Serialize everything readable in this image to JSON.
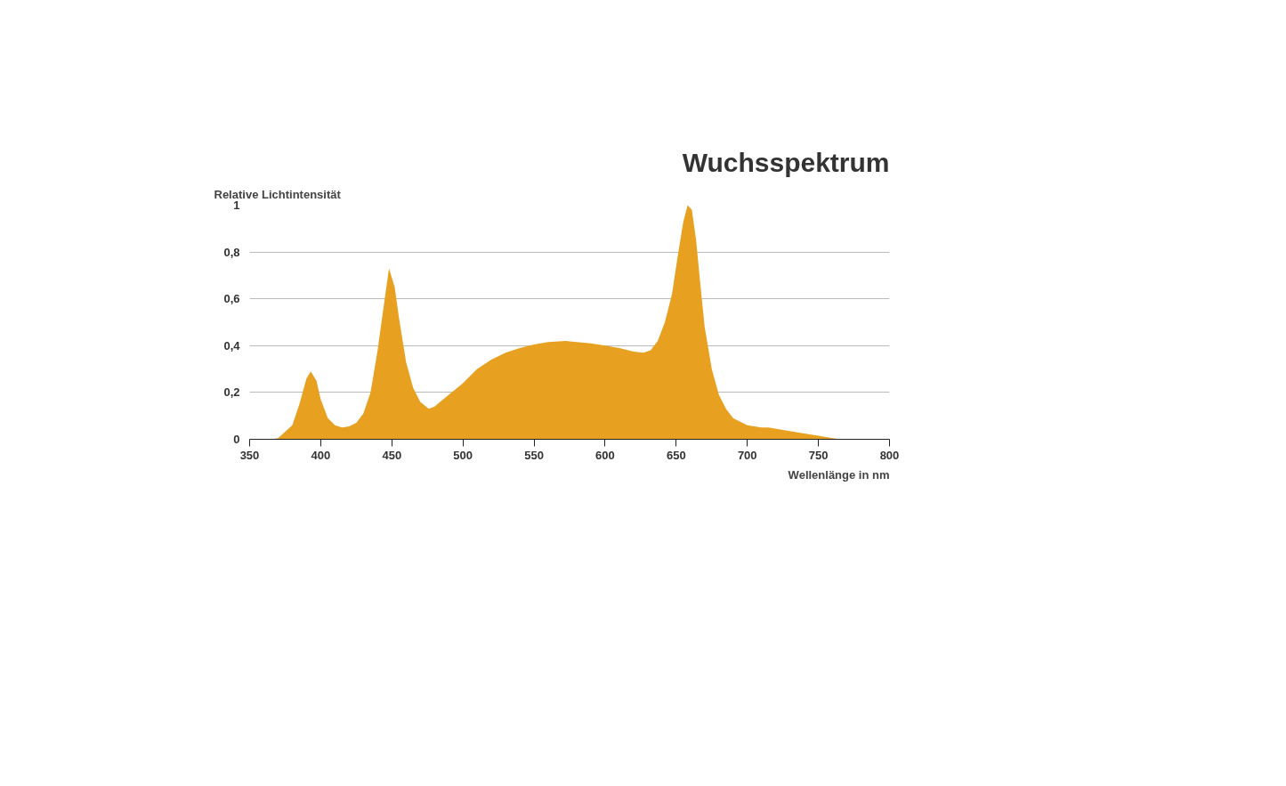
{
  "chart_data": {
    "type": "area",
    "title": "Wuchsspektrum",
    "ylabel": "Relative Lichtintensität",
    "xlabel": "Wellenlänge in nm",
    "x": [
      365,
      370,
      380,
      385,
      390,
      393,
      397,
      400,
      405,
      410,
      415,
      420,
      425,
      430,
      435,
      440,
      445,
      448,
      452,
      455,
      460,
      465,
      470,
      476,
      480,
      490,
      500,
      510,
      520,
      530,
      540,
      550,
      560,
      572,
      580,
      590,
      600,
      610,
      620,
      627,
      632,
      637,
      642,
      647,
      651,
      655,
      658,
      661,
      664,
      667,
      670,
      675,
      680,
      685,
      690,
      700,
      710,
      715,
      725,
      740,
      750,
      760,
      765
    ],
    "series": [
      {
        "color": "#e8a020",
        "values": [
          0,
          0.005,
          0.06,
          0.15,
          0.26,
          0.29,
          0.25,
          0.17,
          0.09,
          0.06,
          0.05,
          0.055,
          0.07,
          0.11,
          0.2,
          0.38,
          0.6,
          0.73,
          0.65,
          0.52,
          0.33,
          0.22,
          0.16,
          0.13,
          0.14,
          0.19,
          0.24,
          0.3,
          0.34,
          0.37,
          0.39,
          0.405,
          0.415,
          0.42,
          0.415,
          0.41,
          0.4,
          0.39,
          0.375,
          0.37,
          0.38,
          0.42,
          0.5,
          0.62,
          0.78,
          0.93,
          1.0,
          0.98,
          0.85,
          0.66,
          0.48,
          0.3,
          0.19,
          0.13,
          0.09,
          0.06,
          0.05,
          0.05,
          0.04,
          0.025,
          0.015,
          0.005,
          0
        ]
      }
    ],
    "xlim": [
      350,
      800
    ],
    "xticks": [
      350,
      400,
      450,
      500,
      550,
      600,
      650,
      700,
      750,
      800
    ],
    "ylim": [
      0,
      1
    ],
    "yticks": [
      0,
      {
        "value": 0.2,
        "label": "0,2"
      },
      {
        "value": 0.4,
        "label": "0,4"
      },
      {
        "value": 0.6,
        "label": "0,6"
      },
      {
        "value": 0.8,
        "label": "0,8"
      },
      1
    ],
    "grid": "y"
  }
}
